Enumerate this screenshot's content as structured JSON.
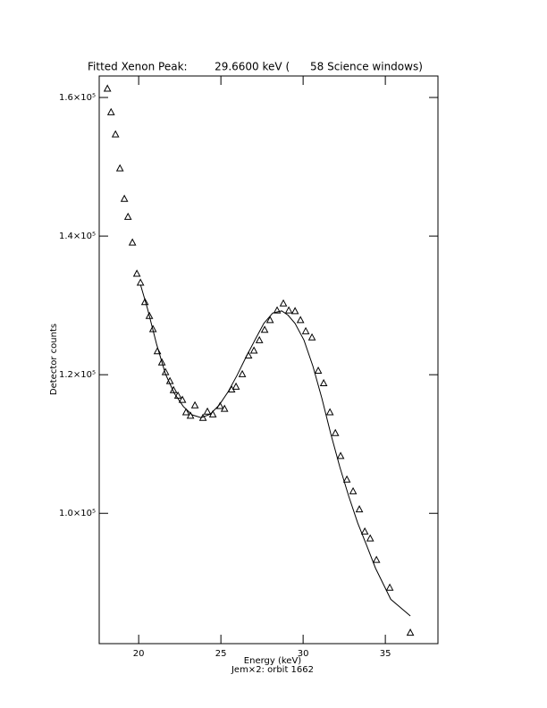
{
  "chart_data": {
    "type": "scatter",
    "title": "Fitted Xenon Peak:        29.6600 keV (      58 Science windows)",
    "subtitle": "Jem×2: orbit 1662",
    "x_label": "Energy (keV)",
    "y_label": "Detector counts",
    "xlim": [
      17.6,
      38.2
    ],
    "xticks": [
      20,
      25,
      30,
      35
    ],
    "ylim": [
      81200,
      163100
    ],
    "yticks": [
      {
        "value": 100000,
        "label": "1.0×10⁵"
      },
      {
        "value": 120000,
        "label": "1.2×10⁵"
      },
      {
        "value": 140000,
        "label": "1.4×10⁵"
      },
      {
        "value": 160000,
        "label": "1.6×10⁵"
      }
    ],
    "series": [
      {
        "color": "#000000",
        "marker": "triangle",
        "x": [
          18.1,
          18.32,
          18.59,
          18.86,
          19.13,
          19.35,
          19.62,
          19.89,
          20.11,
          20.38,
          20.65,
          20.87,
          21.14,
          21.41,
          21.63,
          21.9,
          22.12,
          22.39,
          22.66,
          22.88,
          23.15,
          23.42,
          23.91,
          24.18,
          24.51,
          24.95,
          25.22,
          25.65,
          25.92,
          26.3,
          26.68,
          27.01,
          27.34,
          27.66,
          27.99,
          28.42,
          28.8,
          29.13,
          29.51,
          29.84,
          30.16,
          30.54,
          30.92,
          31.25,
          31.63,
          31.96,
          32.28,
          32.66,
          33.04,
          33.42,
          33.75,
          34.08,
          34.46,
          35.27,
          36.52
        ],
        "values": [
          161300,
          157900,
          154700,
          149800,
          145400,
          142800,
          139100,
          134600,
          133300,
          130500,
          128500,
          126600,
          123400,
          121800,
          120400,
          119100,
          117800,
          117000,
          116400,
          114600,
          114100,
          115600,
          113800,
          114700,
          114300,
          115500,
          115100,
          117900,
          118300,
          120100,
          122800,
          123500,
          125000,
          126500,
          127900,
          129300,
          130300,
          129300,
          129200,
          127900,
          126300,
          125400,
          120600,
          118800,
          114600,
          111600,
          108300,
          104900,
          103200,
          100600,
          97400,
          96400,
          93300,
          89300,
          82800
        ]
      },
      {
        "color": "#000000",
        "marker": "line",
        "x": [
          20.11,
          20.54,
          21.09,
          21.63,
          22.17,
          22.72,
          23.26,
          23.8,
          24.35,
          24.89,
          25.43,
          25.98,
          26.52,
          27.07,
          27.61,
          28.15,
          28.7,
          29.08,
          29.51,
          30.05,
          30.6,
          31.14,
          31.68,
          32.23,
          32.77,
          33.32,
          33.86,
          34.4,
          35.33,
          36.52
        ],
        "values": [
          133000,
          129500,
          124400,
          120100,
          117300,
          115400,
          114200,
          113800,
          114300,
          115600,
          117500,
          119900,
          122500,
          125000,
          127400,
          128900,
          129200,
          128600,
          127400,
          125000,
          121200,
          116600,
          111500,
          106700,
          102500,
          98600,
          95400,
          92100,
          87600,
          85200
        ]
      }
    ]
  }
}
